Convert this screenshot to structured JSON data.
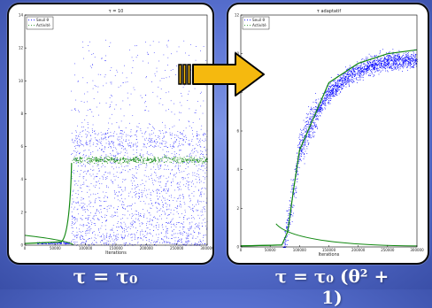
{
  "colors": {
    "seuil": "#0000ff",
    "activite": "#118811",
    "arrow": "#f5b90f"
  },
  "chart_data": [
    {
      "type": "scatter",
      "title": "τ = 10",
      "xlabel": "Iterations",
      "ylabel": "",
      "xlim": [
        0,
        300000
      ],
      "ylim": [
        0,
        14
      ],
      "xticks": [
        "0",
        "50000",
        "100000",
        "150000",
        "200000",
        "250000",
        "300000"
      ],
      "yticks": [
        "0",
        "2",
        "4",
        "6",
        "8",
        "10",
        "12",
        "14"
      ],
      "legend": "top-left",
      "series": [
        {
          "name": "Seuil θ",
          "style": "blue dots",
          "description": "threshold near 0 until ~75000, then dense scatter 0-8 with sparse points up to ~12.5"
        },
        {
          "name": "Activité",
          "style": "green line",
          "points": [
            [
              0,
              0.05
            ],
            [
              60000,
              0.1
            ],
            [
              72000,
              0.4
            ],
            [
              76000,
              3.5
            ],
            [
              78000,
              5.0
            ],
            [
              100000,
              5.2
            ],
            [
              150000,
              5.2
            ],
            [
              200000,
              5.2
            ],
            [
              250000,
              5.2
            ],
            [
              300000,
              5.2
            ]
          ]
        }
      ]
    },
    {
      "type": "scatter",
      "title": "τ adaptatif",
      "xlabel": "Iterations",
      "ylabel": "",
      "xlim": [
        0,
        300000
      ],
      "ylim": [
        0,
        12
      ],
      "xticks": [
        "0",
        "50000",
        "100000",
        "150000",
        "200000",
        "250000",
        "300000"
      ],
      "yticks": [
        "0",
        "2",
        "4",
        "6",
        "8",
        "10",
        "12"
      ],
      "legend": "top-left",
      "series": [
        {
          "name": "Seuil θ",
          "style": "blue dots",
          "points": [
            [
              75000,
              0.3
            ],
            [
              90000,
              3
            ],
            [
              100000,
              5
            ],
            [
              120000,
              6.5
            ],
            [
              150000,
              8
            ],
            [
              180000,
              8.8
            ],
            [
              210000,
              9.3
            ],
            [
              250000,
              9.6
            ],
            [
              300000,
              9.7
            ]
          ]
        },
        {
          "name": "Activité",
          "style": "green line",
          "points": [
            [
              0,
              0.05
            ],
            [
              70000,
              0.1
            ],
            [
              80000,
              0.8
            ],
            [
              90000,
              3
            ],
            [
              100000,
              5
            ],
            [
              150000,
              8.5
            ],
            [
              200000,
              9.5
            ],
            [
              250000,
              10
            ],
            [
              300000,
              10.2
            ]
          ]
        }
      ]
    }
  ],
  "equations": {
    "left": "τ = τ₀",
    "right": "τ = τ₀ (θ² + 1)"
  }
}
